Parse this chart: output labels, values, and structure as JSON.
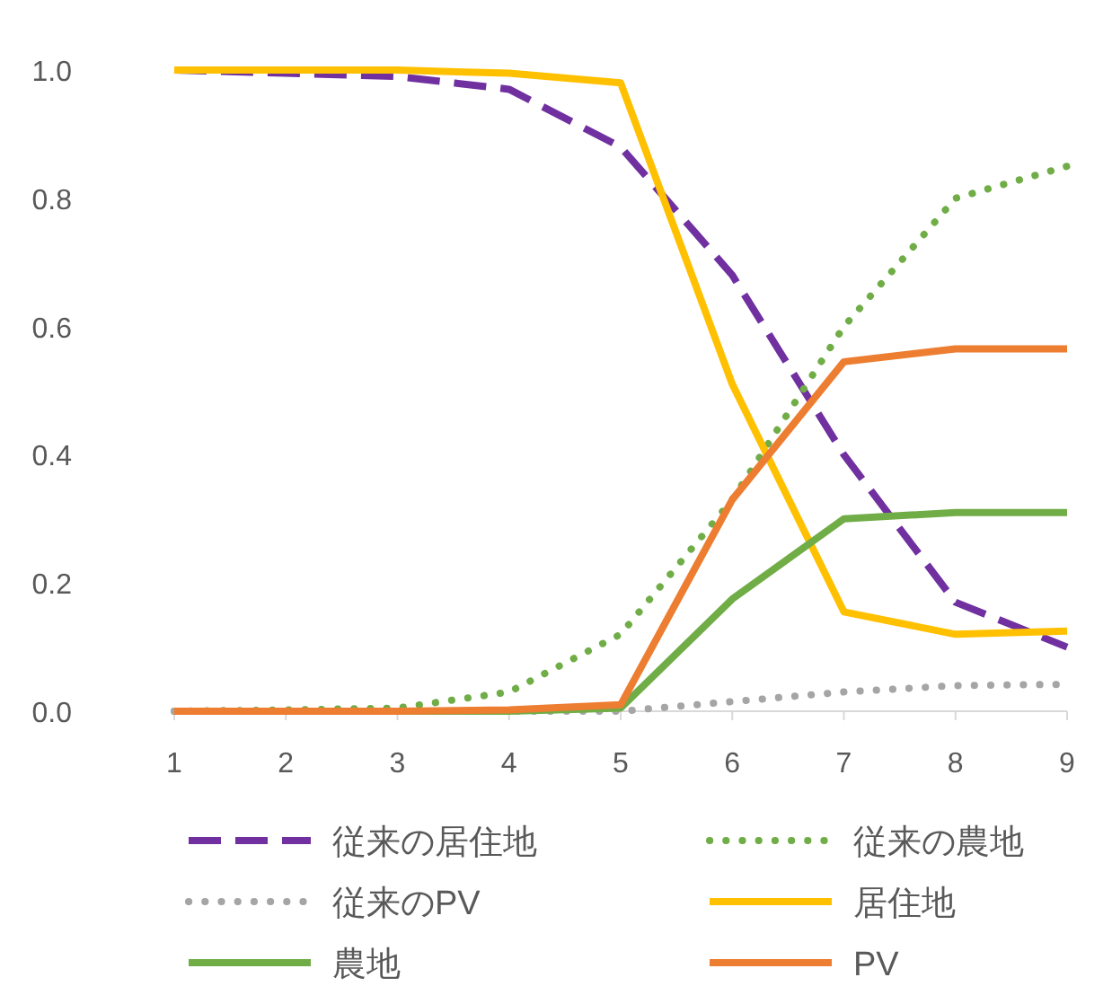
{
  "chart_data": {
    "type": "line",
    "x": [
      1,
      2,
      3,
      4,
      5,
      6,
      7,
      8,
      9
    ],
    "xlim": [
      1,
      9
    ],
    "xticks": [
      1,
      2,
      3,
      4,
      5,
      6,
      7,
      8,
      9
    ],
    "ylim": [
      0,
      1
    ],
    "yticks": [
      {
        "value": 0,
        "label": "0.0"
      },
      {
        "value": 0.2,
        "label": "0.2"
      },
      {
        "value": 0.4,
        "label": "0.4"
      },
      {
        "value": 0.6,
        "label": "0.6"
      },
      {
        "value": 0.8,
        "label": "0.8"
      },
      {
        "value": 1,
        "label": "1.0"
      }
    ],
    "grid": false,
    "legend": "bottom",
    "marker": "none",
    "series": [
      {
        "name": "従来の居住地",
        "color": "#7030a0",
        "line_style": "dashed",
        "values": [
          1.0,
          0.995,
          0.99,
          0.97,
          0.88,
          0.68,
          0.4,
          0.17,
          0.1
        ]
      },
      {
        "name": "従来の農地",
        "color": "#70ad47",
        "line_style": "dotted",
        "values": [
          0,
          0.002,
          0.005,
          0.03,
          0.12,
          0.33,
          0.6,
          0.8,
          0.85
        ]
      },
      {
        "name": "従来のPV",
        "color": "#a5a5a5",
        "line_style": "dotted",
        "values": [
          0,
          0,
          0,
          0,
          0,
          0.015,
          0.03,
          0.04,
          0.042
        ]
      },
      {
        "name": "居住地",
        "color": "#ffc000",
        "line_style": "solid",
        "values": [
          1.0,
          1.0,
          1.0,
          0.995,
          0.98,
          0.51,
          0.155,
          0.12,
          0.125
        ]
      },
      {
        "name": "農地",
        "color": "#70ad47",
        "line_style": "solid",
        "values": [
          0,
          0,
          0,
          0,
          0.005,
          0.175,
          0.3,
          0.31,
          0.31
        ]
      },
      {
        "name": "PV",
        "color": "#ed7d31",
        "line_style": "solid",
        "values": [
          0,
          0,
          0,
          0.002,
          0.01,
          0.33,
          0.545,
          0.565,
          0.565
        ]
      }
    ]
  }
}
